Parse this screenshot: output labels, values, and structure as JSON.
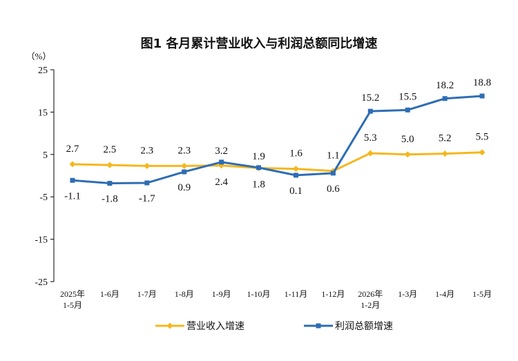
{
  "chart_data": {
    "type": "line",
    "title": "图1  各月累计营业收入与利润总额同比增速",
    "ylabel": "（%）",
    "ylim": [
      -25,
      25
    ],
    "yticks": [
      25,
      15,
      5,
      -5,
      -15,
      -25
    ],
    "categories": [
      [
        "2025年",
        "1-5月"
      ],
      [
        "1-6月"
      ],
      [
        "1-7月"
      ],
      [
        "1-8月"
      ],
      [
        "1-9月"
      ],
      [
        "1-10月"
      ],
      [
        "1-11月"
      ],
      [
        "1-12月"
      ],
      [
        "2026年",
        "1-2月"
      ],
      [
        "1-3月"
      ],
      [
        "1-4月"
      ],
      [
        "1-5月"
      ]
    ],
    "series": [
      {
        "name": "营业收入增速",
        "color": "#F5B71C",
        "marker": "diamond",
        "values": [
          2.7,
          2.5,
          2.3,
          2.3,
          2.4,
          1.8,
          1.6,
          1.1,
          5.3,
          5.0,
          5.2,
          5.5
        ],
        "labels": [
          "2.7",
          "2.5",
          "2.3",
          "2.3",
          "2.4",
          "1.8",
          "1.6",
          "1.1",
          "5.3",
          "5.0",
          "5.2",
          "5.5"
        ]
      },
      {
        "name": "利润总额增速",
        "color": "#2E6DB4",
        "marker": "square",
        "values": [
          -1.1,
          -1.8,
          -1.7,
          0.9,
          3.2,
          1.9,
          0.1,
          0.6,
          15.2,
          15.5,
          18.2,
          18.8
        ],
        "labels": [
          "-1.1",
          "-1.8",
          "-1.7",
          "0.9",
          "3.2",
          "1.9",
          "0.1",
          "0.6",
          "15.2",
          "15.5",
          "18.2",
          "18.8"
        ]
      }
    ],
    "grid": false,
    "legend": "bottom"
  }
}
